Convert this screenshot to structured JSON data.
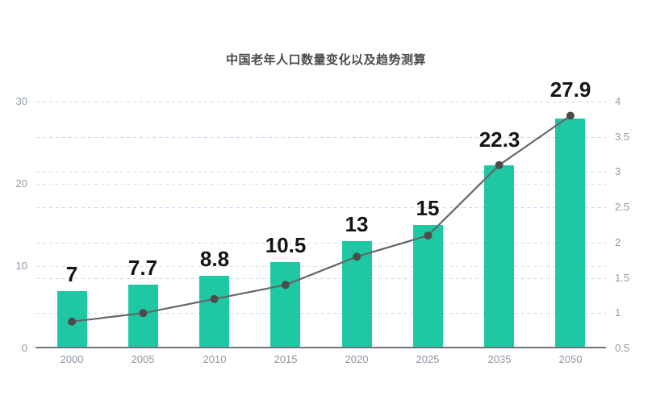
{
  "chart_data": {
    "type": "bar+line",
    "title": "中国老年人口数量变化以及趋势测算",
    "categories": [
      "2000",
      "2005",
      "2010",
      "2015",
      "2020",
      "2025",
      "2035",
      "2050"
    ],
    "series": [
      {
        "name": "bar-series",
        "type": "bar",
        "axis": "left",
        "values": [
          7,
          7.7,
          8.8,
          10.5,
          13,
          15,
          22.3,
          27.9
        ],
        "labels": [
          "7",
          "7.7",
          "8.8",
          "10.5",
          "13",
          "15",
          "22.3",
          "27.9"
        ],
        "color": "#1ec8a3"
      },
      {
        "name": "line-series",
        "type": "line",
        "axis": "right",
        "values": [
          0.88,
          1.0,
          1.2,
          1.4,
          1.8,
          2.1,
          3.1,
          3.8
        ],
        "color": "#666666",
        "point_color": "#4c4c4c"
      }
    ],
    "left_axis": {
      "range": [
        0,
        30
      ],
      "ticks": [
        "0",
        "10",
        "20",
        "30"
      ]
    },
    "right_axis": {
      "range": [
        0.5,
        4
      ],
      "ticks": [
        "0.5",
        "1",
        "1.5",
        "2",
        "2.5",
        "3",
        "3.5",
        "4"
      ]
    },
    "grid": {
      "show": true,
      "style": "dashed",
      "left_color": "#cdeadf",
      "right_color": "#c6d7f2"
    },
    "legend": "none",
    "background": "#ffffff",
    "axis_line_color": "#6f747e",
    "tick_label_color": "#909aa7",
    "data_label_color": "#141414",
    "title_color": "#4a4a4a"
  }
}
